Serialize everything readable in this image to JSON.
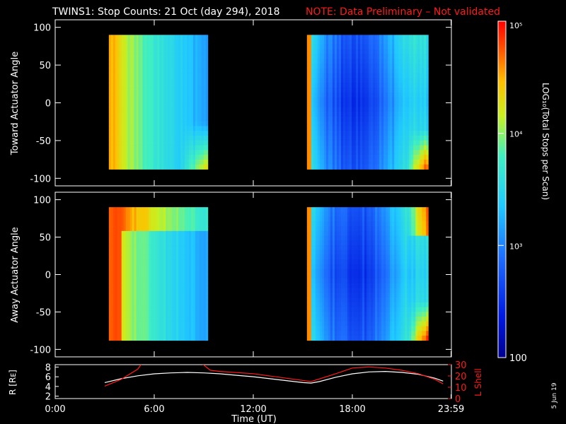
{
  "title": {
    "main": "TWINS1: Stop Counts: 21 Oct (day 294), 2018",
    "note": "NOTE: Data Preliminary – Not validated",
    "note_color": "#ff1a1a"
  },
  "stamp": "5 Jun 19",
  "colorbar": {
    "label": "LOG₁₀(Total Stops per Scan)",
    "range": [
      100,
      100000
    ],
    "ticks": [
      {
        "value": 100,
        "label": "100"
      },
      {
        "value": 1000,
        "label": "10³"
      },
      {
        "value": 10000,
        "label": "10⁴"
      },
      {
        "value": 100000,
        "label": "10⁵"
      }
    ]
  },
  "chart_data": [
    {
      "type": "heatmap",
      "name": "toward",
      "ylabel": "Toward Actuator Angle",
      "xlim": [
        0,
        24
      ],
      "ylim": [
        -110,
        110
      ],
      "yticks": [
        -100,
        -50,
        0,
        50,
        100
      ],
      "data_x_ranges": [
        [
          3.25,
          9.25
        ],
        [
          15.25,
          22.6
        ]
      ],
      "data_y_range": [
        -88,
        90
      ],
      "description_values_log10": {
        "first_pass_min": 3.05,
        "first_pass_max": 4.8,
        "second_pass_min": 2.35,
        "second_pass_max": 4.7
      }
    },
    {
      "type": "heatmap",
      "name": "away",
      "ylabel": "Away Actuator Angle",
      "xlim": [
        0,
        24
      ],
      "ylim": [
        -110,
        110
      ],
      "yticks": [
        -100,
        -50,
        0,
        50,
        100
      ],
      "data_x_ranges": [
        [
          3.25,
          9.25
        ],
        [
          15.25,
          22.6
        ]
      ],
      "data_y_range": [
        -88,
        90
      ],
      "description_values_log10": {
        "first_pass_min": 3.0,
        "first_pass_max": 4.9,
        "second_pass_min": 2.4,
        "second_pass_max": 4.6
      }
    },
    {
      "type": "line",
      "name": "orbit",
      "xlabel": "Time (UT)",
      "xlim": [
        0,
        24
      ],
      "xticks": [
        {
          "value": 0,
          "label": "0:00"
        },
        {
          "value": 6,
          "label": "6:00"
        },
        {
          "value": 12,
          "label": "12:00"
        },
        {
          "value": 18,
          "label": "18:00"
        },
        {
          "value": 23.98,
          "label": "23:59"
        }
      ],
      "ylabel_left": "R [Rᴇ]",
      "ylim_left": [
        1.5,
        8.5
      ],
      "yticks_left": [
        2,
        4,
        6,
        8
      ],
      "ylabel_right": "L Shell",
      "ylim_right": [
        0,
        30
      ],
      "yticks_right": [
        0,
        10,
        20,
        30
      ],
      "series": [
        {
          "name": "R",
          "axis": "left",
          "color": "#ffffff",
          "x": [
            3.0,
            4.0,
            5.0,
            6.0,
            7.0,
            8.0,
            9.0,
            10.0,
            11.0,
            12.0,
            13.0,
            14.0,
            15.0,
            15.5,
            16.0,
            17.0,
            18.0,
            19.0,
            20.0,
            21.0,
            22.0,
            23.0,
            23.5
          ],
          "values": [
            4.8,
            5.6,
            6.2,
            6.6,
            6.8,
            6.9,
            6.8,
            6.6,
            6.3,
            6.0,
            5.6,
            5.2,
            4.8,
            4.7,
            5.0,
            5.9,
            6.6,
            7.0,
            7.1,
            6.9,
            6.5,
            5.7,
            5.1
          ]
        },
        {
          "name": "L Shell",
          "axis": "right",
          "color": "#ff1a1a",
          "x": [
            3.0,
            4.0,
            5.0,
            5.3,
            8.8,
            9.4,
            10.0,
            12.0,
            14.0,
            15.5,
            17.0,
            18.0,
            19.0,
            20.0,
            21.0,
            22.0,
            23.0,
            23.5
          ],
          "values": [
            11,
            17,
            26,
            32,
            32,
            25,
            24,
            22,
            18,
            15,
            22,
            27,
            28,
            27,
            25,
            22,
            17,
            13
          ]
        }
      ]
    }
  ]
}
